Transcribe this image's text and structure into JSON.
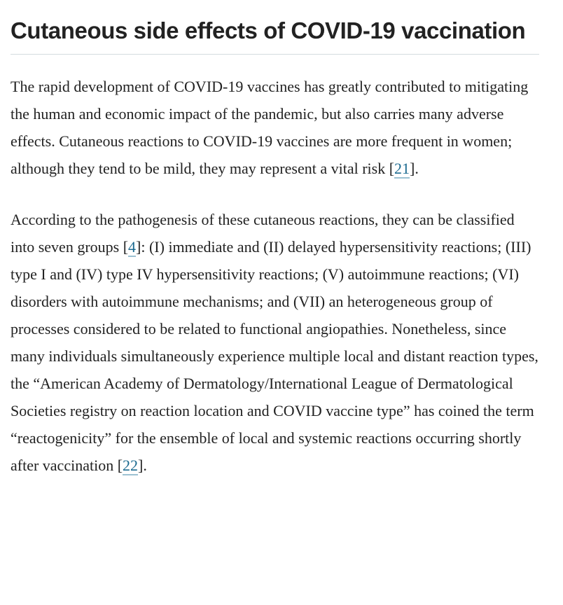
{
  "article": {
    "heading": "Cutaneous side effects of COVID-19 vaccination",
    "paragraph1": {
      "text_before_cite": "The rapid development of COVID-19 vaccines has greatly contributed to mitigating the human and economic impact of the pandemic, but also carries many adverse effects. Cutaneous reactions to COVID-19 vaccines are more frequent in women; although they tend to be mild, they may represent a vital risk [",
      "cite_21": "21",
      "text_after_cite": "]."
    },
    "paragraph2": {
      "text_part1": "According to the pathogenesis of these cutaneous reactions, they can be classified into seven groups [",
      "cite_4": "4",
      "text_part2": "]: (I) immediate and (II) delayed hypersensitivity reactions; (III) type I and (IV) type IV hypersensitivity reactions; (V) autoimmune reactions; (VI) disorders with autoimmune mechanisms; and (VII) an heterogeneous group of processes considered to be related to functional angiopathies. Nonetheless, since many individuals simultaneously experience multiple local and distant reaction types, the “American Academy of Dermatology/International League of Dermatological Societies registry on reaction location and COVID vaccine type” has coined the term “reactogenicity” for the ensemble of local and systemic reactions occurring shortly after vaccination [",
      "cite_22": "22",
      "text_part3": "]."
    },
    "colors": {
      "heading_text": "#222222",
      "body_text": "#222222",
      "citation_link": "#1b6a90",
      "citation_underline": "#9cc1d2",
      "divider": "#d3dcde"
    }
  }
}
